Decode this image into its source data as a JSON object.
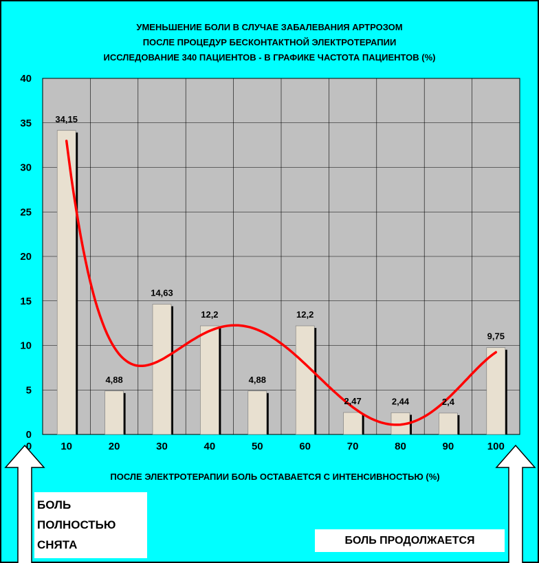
{
  "chart_data": {
    "type": "bar",
    "title_lines": [
      "УМЕНЬШЕНИЕ БОЛИ В СЛУЧАЕ ЗАБАЛЕВАНИЯ АРТРОЗОМ",
      "ПОСЛЕ ПРОЦЕДУР БЕСКОНТАКТНОЙ ЭЛЕКТРОТЕРАПИИ",
      "ИССЛЕДОВАНИЕ 340 ПАЦИЕНТОВ - В ГРАФИКЕ ЧАСТОТА ПАЦИЕНТОВ (%)"
    ],
    "xlabel": "ПОСЛЕ ЭЛЕКТРОТЕРАПИИ БОЛЬ ОСТАВАЕТСЯ С ИНТЕНСИВНОСТЬЮ (%)",
    "ylabel": "",
    "categories": [
      "10",
      "20",
      "30",
      "40",
      "50",
      "60",
      "70",
      "80",
      "90",
      "100"
    ],
    "x_origin_label": "0",
    "values": [
      34.15,
      4.88,
      14.63,
      12.2,
      4.88,
      12.2,
      2.47,
      2.44,
      2.4,
      9.75
    ],
    "data_labels": [
      "34,15",
      "4,88",
      "14,63",
      "12,2",
      "4,88",
      "12,2",
      "2,47",
      "2,44",
      "2,4",
      "9,75"
    ],
    "ylim": [
      0,
      40
    ],
    "yticks": [
      "0",
      "5",
      "10",
      "15",
      "20",
      "25",
      "30",
      "35",
      "40"
    ],
    "grid": true,
    "trendline": {
      "type": "polynomial",
      "color": "#FF0000"
    },
    "colors": {
      "background": "#00FFFF",
      "plot_area": "#C0C0C0",
      "bar_fill": "#E8E0D0",
      "bar_shadow": "#000000",
      "trend": "#FF0000"
    }
  },
  "annotations": {
    "left_box": [
      "БОЛЬ",
      "ПОЛНОСТЬЮ",
      "СНЯТА"
    ],
    "right_box": "БОЛЬ ПРОДОЛЖАЕТСЯ"
  }
}
